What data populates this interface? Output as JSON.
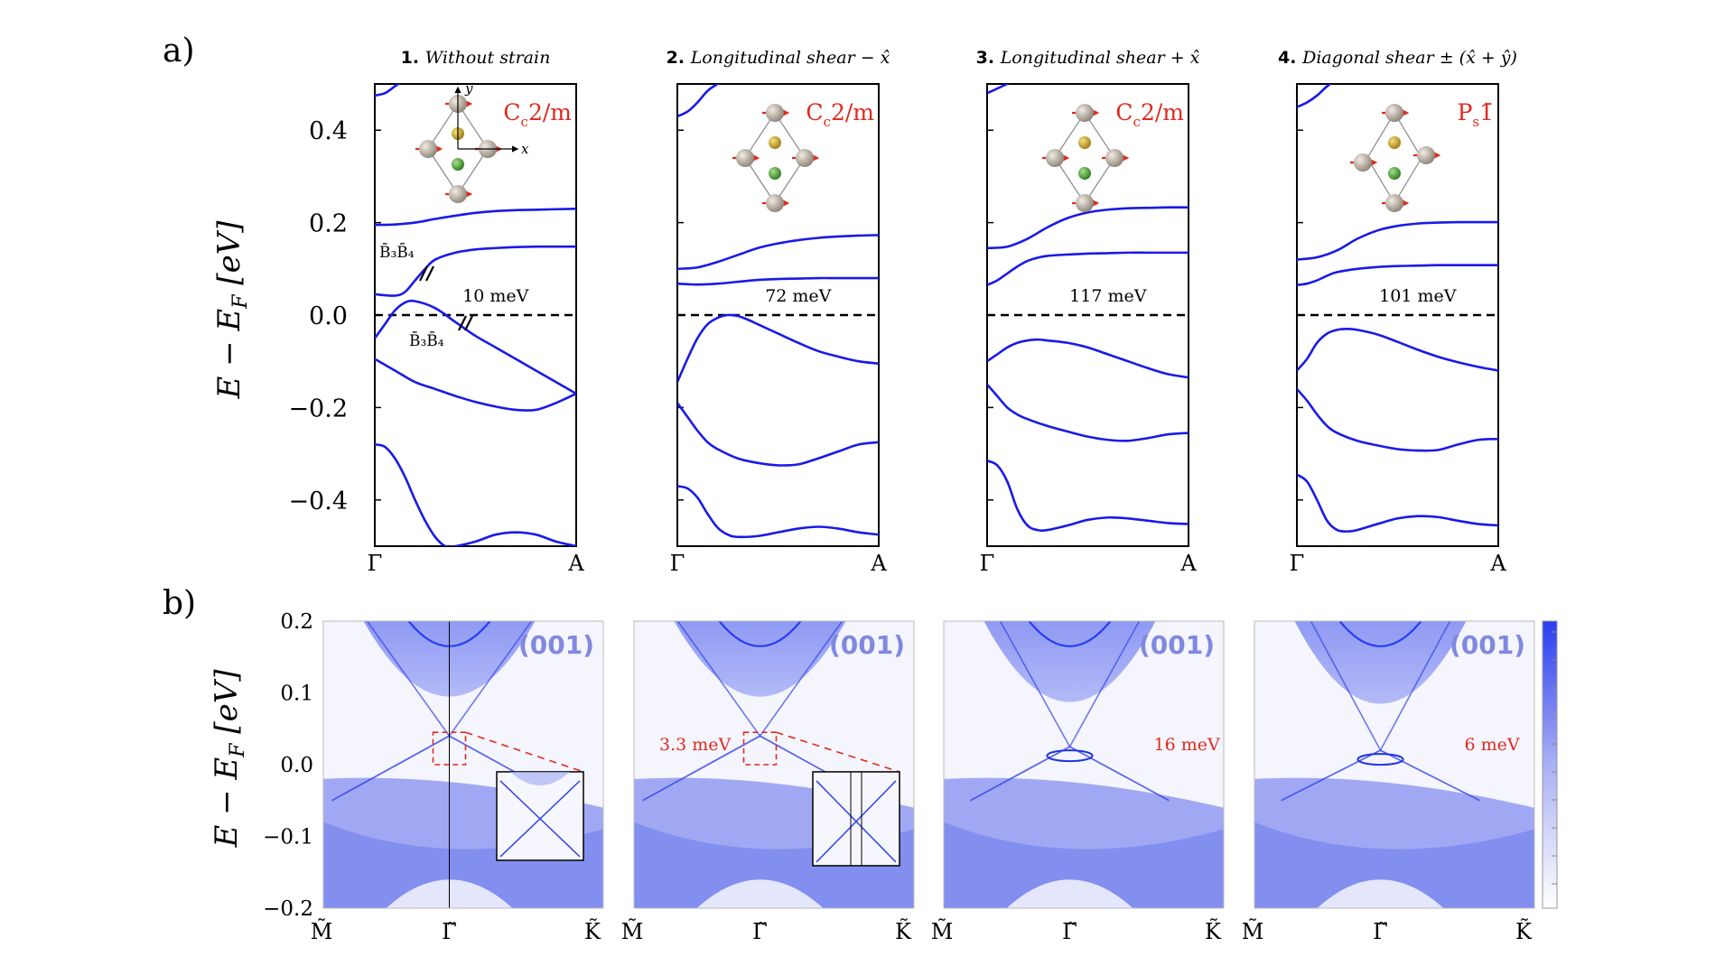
{
  "figure": {
    "panel_a_label": "a)",
    "panel_b_label": "b)",
    "ylabel_a": "E − E",
    "ylabel_a_sub": "F",
    "ylabel_a_unit": " [eV]",
    "ylabel_b": "E − E",
    "ylabel_b_sub": "F",
    "ylabel_b_unit": " [eV]"
  },
  "colors": {
    "band": "#1a1ae6",
    "fermi": "#000000",
    "space_group": "#e02b20",
    "annotation_red": "#e02b20",
    "surface_blue": "#3d4ef0",
    "surface_label": "#8088e0",
    "colorbar_top": "#2a3ef0",
    "colorbar_bottom": "#ffffff"
  },
  "chart_data": [
    {
      "type": "line",
      "title_num": "1.",
      "title": "Without strain",
      "space_group": "C",
      "space_group_sub": "c",
      "space_group_rest": "2/m",
      "xlabels": [
        "Γ",
        "A"
      ],
      "ylim": [
        -0.5,
        0.5
      ],
      "yticks": [
        0.4,
        0.2,
        0.0,
        -0.2,
        -0.4
      ],
      "ytick_labels": [
        "0.4",
        "0.2",
        "0.0",
        "−0.2",
        "−0.4"
      ],
      "gap_label": "10 meV",
      "irrep_labels": [
        "B̄₃B̄₄",
        "B̄₃B̄₄"
      ],
      "axis_letters": [
        "y",
        "x"
      ],
      "series": [
        {
          "x": [
            0,
            0.05,
            0.1,
            0.15,
            0.2,
            0.3,
            0.4,
            0.5,
            0.6,
            0.7,
            0.8,
            0.9,
            1.0
          ],
          "y": [
            0.475,
            0.48,
            0.495,
            0.51,
            0.53,
            0.56,
            0.58,
            0.6,
            0.6,
            0.6,
            0.6,
            0.6,
            0.6
          ]
        },
        {
          "x": [
            0,
            0.1,
            0.2,
            0.3,
            0.4,
            0.5,
            0.6,
            0.7,
            0.8,
            0.9,
            1.0
          ],
          "y": [
            0.195,
            0.196,
            0.2,
            0.208,
            0.215,
            0.221,
            0.225,
            0.227,
            0.228,
            0.229,
            0.23
          ]
        },
        {
          "x": [
            0,
            0.1,
            0.15,
            0.2,
            0.25,
            0.3,
            0.4,
            0.5,
            0.6,
            0.7,
            0.8,
            0.9,
            1.0
          ],
          "y": [
            0.045,
            0.042,
            0.05,
            0.075,
            0.1,
            0.12,
            0.135,
            0.142,
            0.145,
            0.147,
            0.148,
            0.148,
            0.148
          ]
        },
        {
          "x": [
            0,
            0.05,
            0.1,
            0.15,
            0.2,
            0.3,
            0.4,
            0.5,
            0.6,
            0.7,
            0.8,
            0.9,
            1.0
          ],
          "y": [
            -0.05,
            -0.02,
            0.01,
            0.027,
            0.03,
            0.015,
            -0.015,
            -0.045,
            -0.07,
            -0.095,
            -0.12,
            -0.145,
            -0.17
          ]
        },
        {
          "x": [
            0,
            0.1,
            0.2,
            0.3,
            0.4,
            0.5,
            0.6,
            0.7,
            0.8,
            0.9,
            1.0
          ],
          "y": [
            -0.095,
            -0.12,
            -0.145,
            -0.16,
            -0.175,
            -0.188,
            -0.198,
            -0.205,
            -0.205,
            -0.19,
            -0.17
          ]
        },
        {
          "x": [
            0,
            0.05,
            0.1,
            0.15,
            0.2,
            0.25,
            0.3,
            0.35,
            0.4,
            0.5,
            0.6,
            0.7,
            0.8,
            0.9,
            1.0
          ],
          "y": [
            -0.28,
            -0.285,
            -0.31,
            -0.35,
            -0.4,
            -0.445,
            -0.48,
            -0.5,
            -0.5,
            -0.49,
            -0.475,
            -0.47,
            -0.475,
            -0.49,
            -0.5
          ]
        }
      ]
    },
    {
      "type": "line",
      "title_num": "2.",
      "title": "Longitudinal shear",
      "title_sym": "− x̂",
      "space_group": "C",
      "space_group_sub": "c",
      "space_group_rest": "2/m",
      "xlabels": [
        "Γ",
        "A"
      ],
      "ylim": [
        -0.5,
        0.5
      ],
      "gap_label": "72 meV",
      "series": [
        {
          "x": [
            0,
            0.05,
            0.1,
            0.15,
            0.2,
            0.25
          ],
          "y": [
            0.43,
            0.44,
            0.46,
            0.485,
            0.5,
            0.51
          ]
        },
        {
          "x": [
            0,
            0.1,
            0.2,
            0.3,
            0.4,
            0.5,
            0.6,
            0.7,
            0.8,
            0.9,
            1.0
          ],
          "y": [
            0.1,
            0.103,
            0.115,
            0.13,
            0.145,
            0.155,
            0.162,
            0.167,
            0.17,
            0.172,
            0.173
          ]
        },
        {
          "x": [
            0,
            0.1,
            0.2,
            0.3,
            0.4,
            0.5,
            0.6,
            0.7,
            0.8,
            0.9,
            1.0
          ],
          "y": [
            0.068,
            0.066,
            0.068,
            0.072,
            0.076,
            0.078,
            0.079,
            0.08,
            0.08,
            0.08,
            0.08
          ]
        },
        {
          "x": [
            0,
            0.05,
            0.1,
            0.15,
            0.2,
            0.25,
            0.3,
            0.35,
            0.4,
            0.5,
            0.6,
            0.7,
            0.8,
            0.9,
            1.0
          ],
          "y": [
            -0.145,
            -0.095,
            -0.05,
            -0.02,
            -0.006,
            0.0,
            -0.002,
            -0.01,
            -0.02,
            -0.04,
            -0.06,
            -0.078,
            -0.09,
            -0.1,
            -0.105
          ]
        },
        {
          "x": [
            0,
            0.05,
            0.1,
            0.15,
            0.2,
            0.3,
            0.4,
            0.5,
            0.6,
            0.7,
            0.8,
            0.9,
            1.0
          ],
          "y": [
            -0.19,
            -0.22,
            -0.25,
            -0.275,
            -0.29,
            -0.31,
            -0.32,
            -0.325,
            -0.323,
            -0.31,
            -0.295,
            -0.28,
            -0.275
          ]
        },
        {
          "x": [
            0,
            0.05,
            0.1,
            0.15,
            0.2,
            0.25,
            0.3,
            0.4,
            0.5,
            0.6,
            0.7,
            0.8,
            0.9,
            1.0
          ],
          "y": [
            -0.37,
            -0.375,
            -0.395,
            -0.43,
            -0.46,
            -0.475,
            -0.48,
            -0.478,
            -0.47,
            -0.462,
            -0.458,
            -0.462,
            -0.47,
            -0.475
          ]
        }
      ]
    },
    {
      "type": "line",
      "title_num": "3.",
      "title": "Longitudinal shear",
      "title_sym": "+ x̂",
      "space_group": "C",
      "space_group_sub": "c",
      "space_group_rest": "2/m",
      "xlabels": [
        "Γ",
        "A"
      ],
      "ylim": [
        -0.5,
        0.5
      ],
      "gap_label": "117 meV",
      "series": [
        {
          "x": [
            0,
            0.05,
            0.1,
            0.15,
            0.2,
            0.25
          ],
          "y": [
            0.48,
            0.49,
            0.5,
            0.51,
            0.52,
            0.53
          ]
        },
        {
          "x": [
            0,
            0.1,
            0.2,
            0.3,
            0.4,
            0.5,
            0.6,
            0.7,
            0.8,
            0.9,
            1.0
          ],
          "y": [
            0.145,
            0.148,
            0.165,
            0.19,
            0.21,
            0.222,
            0.228,
            0.231,
            0.232,
            0.233,
            0.233
          ]
        },
        {
          "x": [
            0,
            0.05,
            0.1,
            0.15,
            0.2,
            0.25,
            0.3,
            0.4,
            0.5,
            0.6,
            0.7,
            0.8,
            0.9,
            1.0
          ],
          "y": [
            0.065,
            0.075,
            0.09,
            0.105,
            0.117,
            0.124,
            0.128,
            0.131,
            0.133,
            0.134,
            0.135,
            0.135,
            0.135,
            0.135
          ]
        },
        {
          "x": [
            0,
            0.05,
            0.1,
            0.15,
            0.2,
            0.25,
            0.3,
            0.4,
            0.5,
            0.6,
            0.7,
            0.8,
            0.9,
            1.0
          ],
          "y": [
            -0.1,
            -0.085,
            -0.07,
            -0.06,
            -0.055,
            -0.053,
            -0.055,
            -0.06,
            -0.07,
            -0.085,
            -0.1,
            -0.115,
            -0.128,
            -0.135
          ]
        },
        {
          "x": [
            0,
            0.05,
            0.1,
            0.15,
            0.2,
            0.3,
            0.4,
            0.5,
            0.6,
            0.7,
            0.8,
            0.9,
            1.0
          ],
          "y": [
            -0.15,
            -0.175,
            -0.2,
            -0.215,
            -0.225,
            -0.24,
            -0.252,
            -0.263,
            -0.27,
            -0.272,
            -0.266,
            -0.258,
            -0.255
          ]
        },
        {
          "x": [
            0,
            0.05,
            0.1,
            0.15,
            0.2,
            0.25,
            0.3,
            0.4,
            0.5,
            0.6,
            0.7,
            0.8,
            0.9,
            1.0
          ],
          "y": [
            -0.315,
            -0.325,
            -0.36,
            -0.42,
            -0.455,
            -0.465,
            -0.465,
            -0.455,
            -0.443,
            -0.438,
            -0.44,
            -0.445,
            -0.45,
            -0.452
          ]
        }
      ]
    },
    {
      "type": "line",
      "title_num": "4.",
      "title": "Diagonal shear",
      "title_sym": "± (x̂ + ŷ)",
      "space_group": "P",
      "space_group_sub": "s",
      "space_group_rest": "1̄",
      "xlabels": [
        "Γ",
        "A"
      ],
      "ylim": [
        -0.5,
        0.5
      ],
      "gap_label": "101 meV",
      "series": [
        {
          "x": [
            0,
            0.05,
            0.1,
            0.15,
            0.2,
            0.25
          ],
          "y": [
            0.45,
            0.46,
            0.475,
            0.495,
            0.51,
            0.52
          ]
        },
        {
          "x": [
            0,
            0.1,
            0.2,
            0.3,
            0.4,
            0.5,
            0.6,
            0.7,
            0.8,
            0.9,
            1.0
          ],
          "y": [
            0.12,
            0.125,
            0.14,
            0.165,
            0.183,
            0.193,
            0.198,
            0.2,
            0.201,
            0.201,
            0.201
          ]
        },
        {
          "x": [
            0,
            0.05,
            0.1,
            0.15,
            0.2,
            0.3,
            0.4,
            0.5,
            0.6,
            0.7,
            0.8,
            0.9,
            1.0
          ],
          "y": [
            0.065,
            0.068,
            0.075,
            0.085,
            0.093,
            0.1,
            0.104,
            0.106,
            0.107,
            0.108,
            0.108,
            0.108,
            0.108
          ]
        },
        {
          "x": [
            0,
            0.05,
            0.1,
            0.15,
            0.2,
            0.25,
            0.3,
            0.4,
            0.5,
            0.6,
            0.7,
            0.8,
            0.9,
            1.0
          ],
          "y": [
            -0.12,
            -0.095,
            -0.06,
            -0.04,
            -0.032,
            -0.03,
            -0.032,
            -0.042,
            -0.058,
            -0.075,
            -0.09,
            -0.102,
            -0.112,
            -0.12
          ]
        },
        {
          "x": [
            0,
            0.05,
            0.1,
            0.15,
            0.2,
            0.3,
            0.4,
            0.5,
            0.6,
            0.7,
            0.8,
            0.9,
            1.0
          ],
          "y": [
            -0.16,
            -0.185,
            -0.215,
            -0.24,
            -0.255,
            -0.272,
            -0.282,
            -0.29,
            -0.293,
            -0.292,
            -0.28,
            -0.27,
            -0.268
          ]
        },
        {
          "x": [
            0,
            0.05,
            0.1,
            0.15,
            0.2,
            0.25,
            0.3,
            0.4,
            0.5,
            0.6,
            0.7,
            0.8,
            0.9,
            1.0
          ],
          "y": [
            -0.345,
            -0.36,
            -0.4,
            -0.445,
            -0.465,
            -0.468,
            -0.465,
            -0.452,
            -0.44,
            -0.435,
            -0.437,
            -0.445,
            -0.452,
            -0.455
          ]
        }
      ]
    },
    {
      "type": "heatmap",
      "surface_label": "(001)",
      "xlabels": [
        "M̃",
        "Γ̃",
        "K̃"
      ],
      "ylim": [
        -0.2,
        0.2
      ],
      "yticks": [
        0.2,
        0.1,
        0.0,
        -0.1,
        -0.2
      ],
      "ytick_labels": [
        "0.2",
        "0.1",
        "0.0",
        "−0.1",
        "−0.2"
      ],
      "gap_label": ""
    },
    {
      "type": "heatmap",
      "surface_label": "(001)",
      "xlabels": [
        "M̃",
        "Γ̃",
        "K̃"
      ],
      "ylim": [
        -0.2,
        0.2
      ],
      "gap_label": "3.3 meV"
    },
    {
      "type": "heatmap",
      "surface_label": "(001)",
      "xlabels": [
        "M̃",
        "Γ̃",
        "K̃"
      ],
      "ylim": [
        -0.2,
        0.2
      ],
      "gap_label": "16 meV"
    },
    {
      "type": "heatmap",
      "surface_label": "(001)",
      "xlabels": [
        "M̃",
        "Γ̃",
        "K̃"
      ],
      "ylim": [
        -0.2,
        0.2
      ],
      "gap_label": "6 meV"
    }
  ]
}
